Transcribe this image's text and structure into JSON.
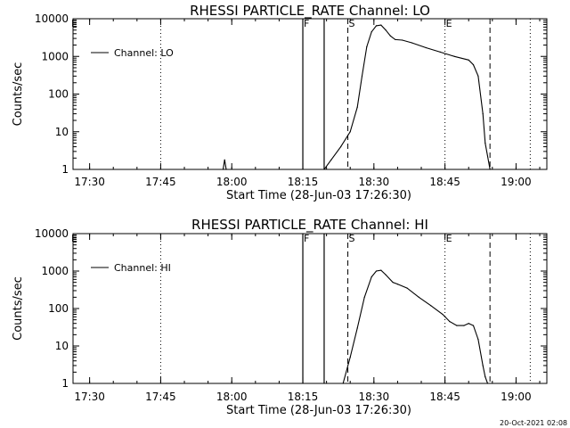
{
  "footer": {
    "timestamp": "20-Oct-2021 02:08"
  },
  "axis_common": {
    "x_ticks": [
      "17:30",
      "17:45",
      "18:00",
      "18:15",
      "18:30",
      "18:45",
      "19:00"
    ],
    "y_ticks": [
      "1",
      "10",
      "100",
      "1000",
      "10000"
    ],
    "xlabel": "Start Time (28-Jun-03 17:26:30)",
    "ylabel": "Counts/sec"
  },
  "chart_data": [
    {
      "type": "line",
      "title": "RHESSI PARTICLE_RATE Channel: LO",
      "xlabel": "Start Time (28-Jun-03 17:26:30)",
      "ylabel": "Counts/sec",
      "yscale": "log",
      "xlim": [
        "17:26:30",
        "19:06:30"
      ],
      "ylim": [
        1,
        10000
      ],
      "legend": {
        "label": "Channel: LO",
        "position": "top-left"
      },
      "markers": [
        {
          "label": "F",
          "time": "18:15:00",
          "style": "solid"
        },
        {
          "label": "",
          "time": "18:19:30",
          "style": "solid"
        },
        {
          "label": "S",
          "time": "18:24:30",
          "style": "dashed"
        },
        {
          "label": "E",
          "time": "18:45:00",
          "style": "dotted"
        },
        {
          "label": "",
          "time": "18:54:30",
          "style": "dashed"
        },
        {
          "label": "",
          "time": "17:45:00",
          "style": "dotted"
        },
        {
          "label": "",
          "time": "19:03:00",
          "style": "dotted"
        }
      ],
      "series": [
        {
          "name": "Channel: LO",
          "x": [
            "17:58:10",
            "17:58:30",
            "17:58:50",
            "18:19:30",
            "18:21:00",
            "18:23:00",
            "18:25:00",
            "18:26:30",
            "18:27:30",
            "18:28:30",
            "18:29:30",
            "18:30:30",
            "18:31:30",
            "18:32:30",
            "18:33:30",
            "18:34:30",
            "18:36:00",
            "18:38:00",
            "18:41:00",
            "18:44:00",
            "18:47:00",
            "18:50:00",
            "18:51:00",
            "18:52:00",
            "18:53:00",
            "18:53:30",
            "18:54:30"
          ],
          "y": [
            1,
            1.8,
            1,
            1,
            1.8,
            4,
            10,
            45,
            300,
            1800,
            4500,
            6500,
            6800,
            5000,
            3500,
            2800,
            2700,
            2300,
            1700,
            1300,
            1000,
            800,
            600,
            300,
            30,
            5,
            1
          ]
        }
      ]
    },
    {
      "type": "line",
      "title": "RHESSI PARTICLE_RATE Channel: HI",
      "xlabel": "Start Time (28-Jun-03 17:26:30)",
      "ylabel": "Counts/sec",
      "yscale": "log",
      "xlim": [
        "17:26:30",
        "19:06:30"
      ],
      "ylim": [
        1,
        10000
      ],
      "legend": {
        "label": "Channel: HI",
        "position": "top-left"
      },
      "markers": [
        {
          "label": "F",
          "time": "18:15:00",
          "style": "solid"
        },
        {
          "label": "",
          "time": "18:19:30",
          "style": "solid"
        },
        {
          "label": "S",
          "time": "18:24:30",
          "style": "dashed"
        },
        {
          "label": "E",
          "time": "18:45:00",
          "style": "dotted"
        },
        {
          "label": "",
          "time": "18:54:30",
          "style": "dashed"
        },
        {
          "label": "",
          "time": "17:45:00",
          "style": "dotted"
        },
        {
          "label": "",
          "time": "19:03:00",
          "style": "dotted"
        }
      ],
      "series": [
        {
          "name": "Channel: HI",
          "x": [
            "18:23:30",
            "18:25:00",
            "18:26:30",
            "18:28:00",
            "18:29:30",
            "18:30:30",
            "18:31:30",
            "18:32:30",
            "18:34:00",
            "18:35:00",
            "18:37:00",
            "18:39:30",
            "18:42:00",
            "18:44:30",
            "18:46:00",
            "18:47:30",
            "18:49:00",
            "18:50:00",
            "18:51:00",
            "18:52:00",
            "18:53:00",
            "18:53:30",
            "18:54:00"
          ],
          "y": [
            1,
            5,
            30,
            200,
            700,
            1000,
            1050,
            800,
            500,
            450,
            350,
            200,
            120,
            70,
            45,
            35,
            35,
            40,
            35,
            15,
            3,
            1.5,
            1
          ]
        }
      ]
    }
  ]
}
